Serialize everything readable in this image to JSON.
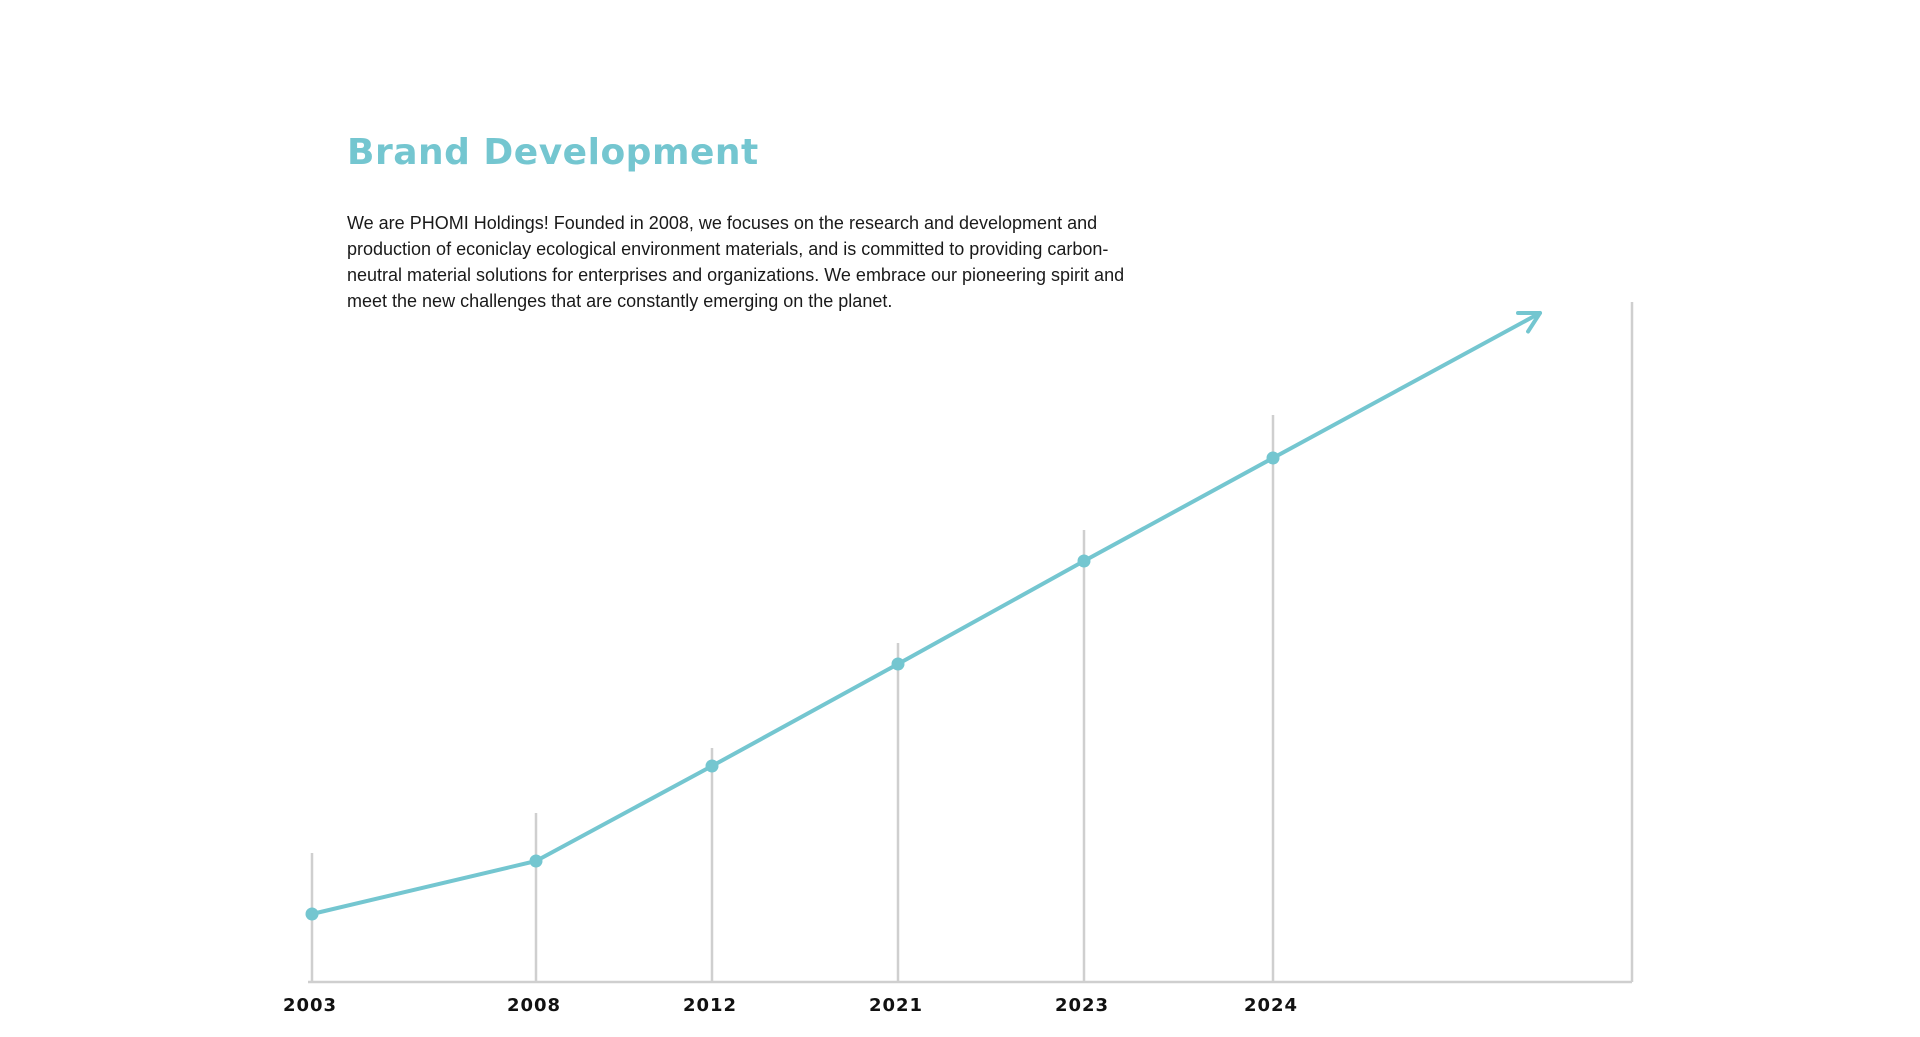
{
  "heading": {
    "title": "Brand Development",
    "description": "We are PHOMI Holdings! Founded in 2008, we focuses on the research and development and production of econiclay ecological environment materials, and is committed to providing carbon-neutral material solutions for enterprises and organizations. We embrace our pioneering spirit and meet the new challenges that are constantly emerging on the planet."
  },
  "colors": {
    "accent": "#74c6d0",
    "grid": "#cfcfcf",
    "label": "#111111"
  },
  "chart_data": {
    "type": "line",
    "title": "",
    "xlabel": "",
    "ylabel": "",
    "categories": [
      "2003",
      "2008",
      "2012",
      "2021",
      "2023",
      "2024"
    ],
    "series": [
      {
        "values": [
          1,
          2,
          3,
          4,
          5,
          6
        ]
      }
    ],
    "trend_arrow": true,
    "grid": "vertical drop lines at each category",
    "legend": "none"
  }
}
